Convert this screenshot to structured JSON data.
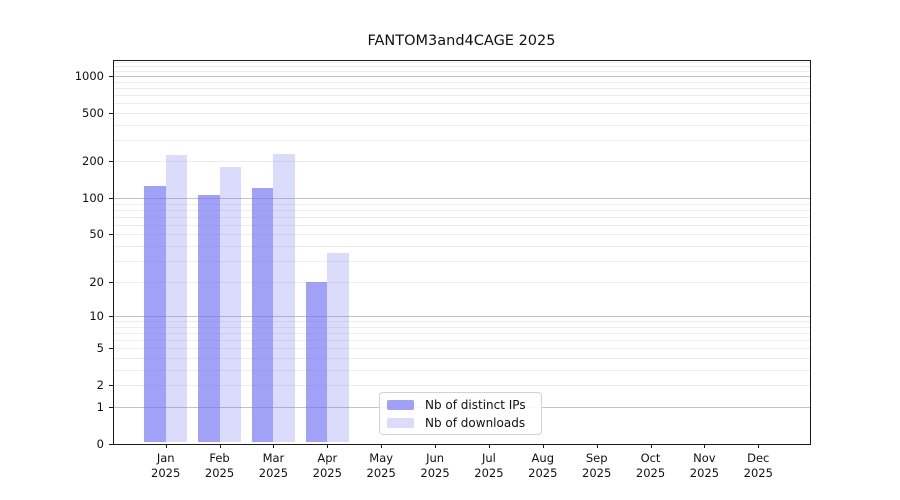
{
  "chart_data": {
    "type": "bar",
    "title": "FANTOM3and4CAGE 2025",
    "year": "2025",
    "categories": [
      "Jan",
      "Feb",
      "Mar",
      "Apr",
      "May",
      "Jun",
      "Jul",
      "Aug",
      "Sep",
      "Oct",
      "Nov",
      "Dec"
    ],
    "series": [
      {
        "name": "Nb of distinct IPs",
        "color": "rgba(110,110,242,0.65)",
        "values": [
          125,
          105,
          120,
          20,
          0,
          0,
          0,
          0,
          0,
          0,
          0,
          0
        ]
      },
      {
        "name": "Nb of downloads",
        "color": "rgba(110,110,242,0.25)",
        "values": [
          225,
          180,
          230,
          35,
          0,
          0,
          0,
          0,
          0,
          0,
          0,
          0
        ]
      }
    ],
    "y_ticks": [
      0,
      1,
      2,
      5,
      10,
      20,
      50,
      100,
      200,
      500,
      1000
    ],
    "y_scale": "log10(value+1)",
    "ylim": [
      0,
      1400
    ],
    "xlabel": "",
    "ylabel": "",
    "grid": true,
    "legend_position": "lower center"
  }
}
